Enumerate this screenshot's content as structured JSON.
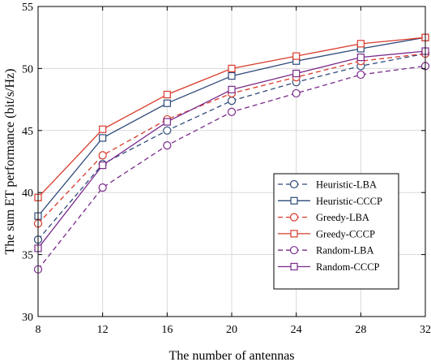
{
  "chart_data": {
    "type": "line",
    "title": "",
    "xlabel": "The number of antennas",
    "ylabel": "The sum ET performance (bit/s/Hz)",
    "x": [
      8,
      12,
      16,
      20,
      24,
      28,
      32
    ],
    "xticks": [
      "8",
      "12",
      "16",
      "20",
      "24",
      "28",
      "32"
    ],
    "yticks": [
      "30",
      "35",
      "40",
      "45",
      "50",
      "55"
    ],
    "xlim": [
      8,
      32
    ],
    "ylim": [
      30,
      55
    ],
    "grid": true,
    "legend_position": "center-right",
    "series": [
      {
        "name": "Heuristic-LBA",
        "color": "#2e4a7a",
        "dash": true,
        "marker": "circle",
        "values": [
          36.2,
          42.3,
          45.0,
          47.4,
          48.9,
          50.2,
          51.2
        ]
      },
      {
        "name": "Heuristic-CCCP",
        "color": "#2e4a7a",
        "dash": false,
        "marker": "square",
        "values": [
          38.1,
          44.4,
          47.2,
          49.4,
          50.6,
          51.6,
          52.5
        ]
      },
      {
        "name": "Greedy-LBA",
        "color": "#d93b2b",
        "dash": true,
        "marker": "circle",
        "values": [
          37.5,
          43.0,
          45.9,
          48.0,
          49.3,
          50.6,
          51.2
        ]
      },
      {
        "name": "Greedy-CCCP",
        "color": "#d93b2b",
        "dash": false,
        "marker": "square",
        "values": [
          39.6,
          45.1,
          47.9,
          50.0,
          51.0,
          52.0,
          52.5
        ]
      },
      {
        "name": "Random-LBA",
        "color": "#7b2a8c",
        "dash": true,
        "marker": "circle",
        "values": [
          33.8,
          40.4,
          43.8,
          46.5,
          48.0,
          49.5,
          50.2
        ]
      },
      {
        "name": "Random-CCCP",
        "color": "#7b2a8c",
        "dash": false,
        "marker": "square",
        "values": [
          35.5,
          42.2,
          45.7,
          48.3,
          49.6,
          50.9,
          51.4
        ]
      }
    ]
  }
}
